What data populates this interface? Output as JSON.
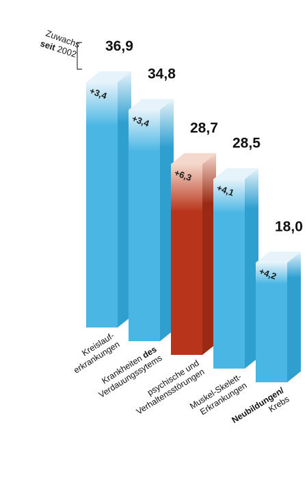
{
  "legend": {
    "line1": "Zuwachs",
    "line2_bold": "seit",
    "line2_rest": " 2002"
  },
  "colors": {
    "bar_top_light": "#e6f3fa",
    "bar_front": "#4ab6e4",
    "bar_side": "#2f9fd0",
    "highlight_top_light": "#f4d8cc",
    "highlight_front": "#b8341a",
    "highlight_side": "#9a2a14"
  },
  "chart_data": {
    "type": "bar",
    "title": "",
    "xlabel": "",
    "ylabel": "",
    "categories": [
      [
        "Kreislauf-",
        "erkrankungen"
      ],
      [
        "Krankheiten des",
        "Verdauungssytems"
      ],
      [
        "psychische und",
        "Verhaltensstörungen"
      ],
      [
        "Muskel-Skelett-",
        "Erkrankungen"
      ],
      [
        "Neubildungen/",
        "Krebs"
      ]
    ],
    "values": [
      36.9,
      34.8,
      28.7,
      28.5,
      18.0
    ],
    "value_labels": [
      "36,9",
      "34,8",
      "28,7",
      "28,5",
      "18,0"
    ],
    "increase_labels": [
      "+3,4",
      "+3,4",
      "+6,3",
      "+4,1",
      "+4,2"
    ],
    "highlight_index": 2
  }
}
